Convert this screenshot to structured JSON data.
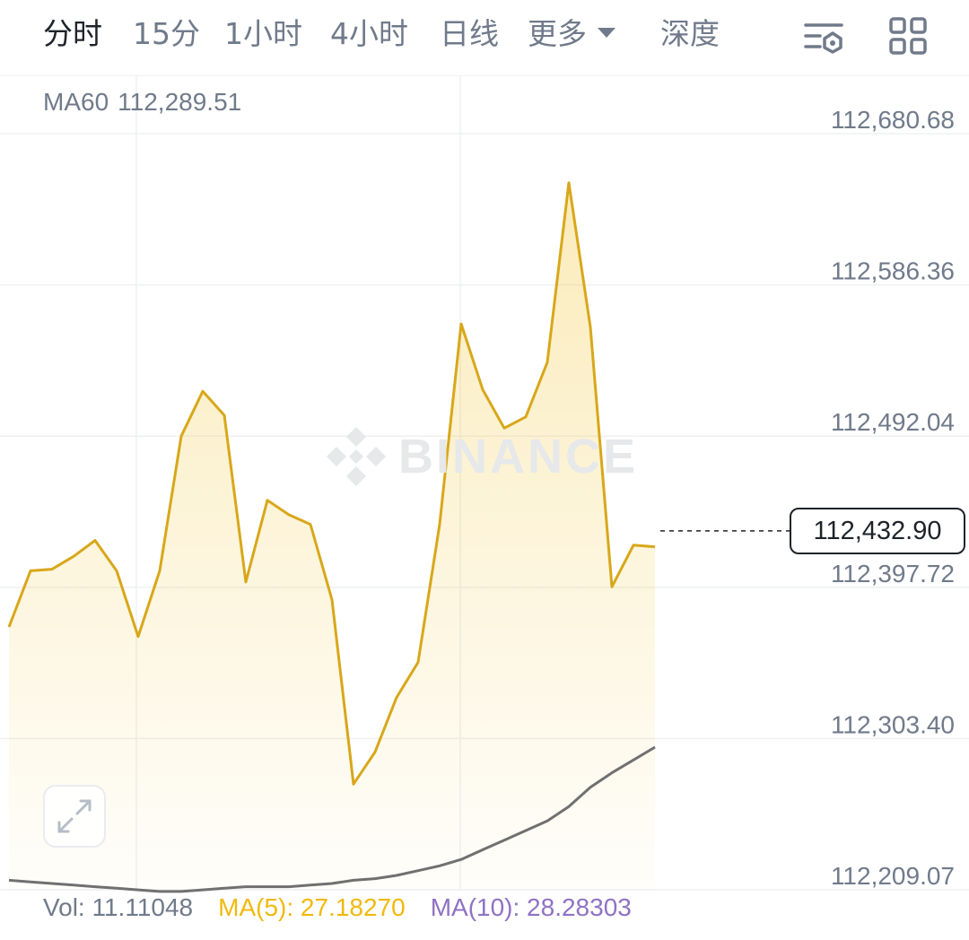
{
  "tabs": [
    {
      "label": "分时",
      "active": true
    },
    {
      "label": "15分",
      "active": false
    },
    {
      "label": "1小时",
      "active": false
    },
    {
      "label": "4小时",
      "active": false
    },
    {
      "label": "日线",
      "active": false
    },
    {
      "label": "更多",
      "active": false
    },
    {
      "label": "深度",
      "active": false
    }
  ],
  "icons": {
    "settings": "chart-settings-icon",
    "layout": "grid-layout-icon",
    "expand": "expand-icon",
    "more_caret": "caret-down-icon"
  },
  "indicator_top": {
    "label": "MA60",
    "value": "112,289.51"
  },
  "price_axis": [
    "112,680.68",
    "112,586.36",
    "112,492.04",
    "112,397.72",
    "112,303.40",
    "112,209.07"
  ],
  "current_price": "112,432.90",
  "watermark": "BINANCE",
  "volume": {
    "vol": "Vol: 11.11048",
    "ma5": "MA(5): 27.18270",
    "ma10": "MA(10): 28.28303"
  },
  "colors": {
    "price_line": "#d8a71a",
    "ma_line": "#707070",
    "accent": "#f0b90b",
    "ma10": "#8f72c4",
    "grid": "#eef0f2"
  },
  "chart_data": {
    "type": "area",
    "price_series": [
      112373,
      112408,
      112409,
      112417,
      112427,
      112408,
      112367,
      112408,
      112492,
      112520,
      112505,
      112401,
      112452,
      112443,
      112437,
      112390,
      112275,
      112295,
      112329,
      112351,
      112437,
      112562,
      112521,
      112497,
      112504,
      112538,
      112650,
      112560,
      112398,
      112424,
      112423
    ],
    "ma60_series": [
      112215,
      112214,
      112213,
      112212,
      112211,
      112210,
      112209,
      112208,
      112208,
      112209,
      112210,
      112211,
      112211,
      112211,
      112212,
      112213,
      112215,
      112216,
      112218,
      112221,
      112224,
      112228,
      112234,
      112240,
      112246,
      112252,
      112261,
      112273,
      112282,
      112290,
      112298
    ],
    "current_price": 112432.9,
    "ylim": [
      112209.07,
      112680.68
    ],
    "grid": true
  }
}
